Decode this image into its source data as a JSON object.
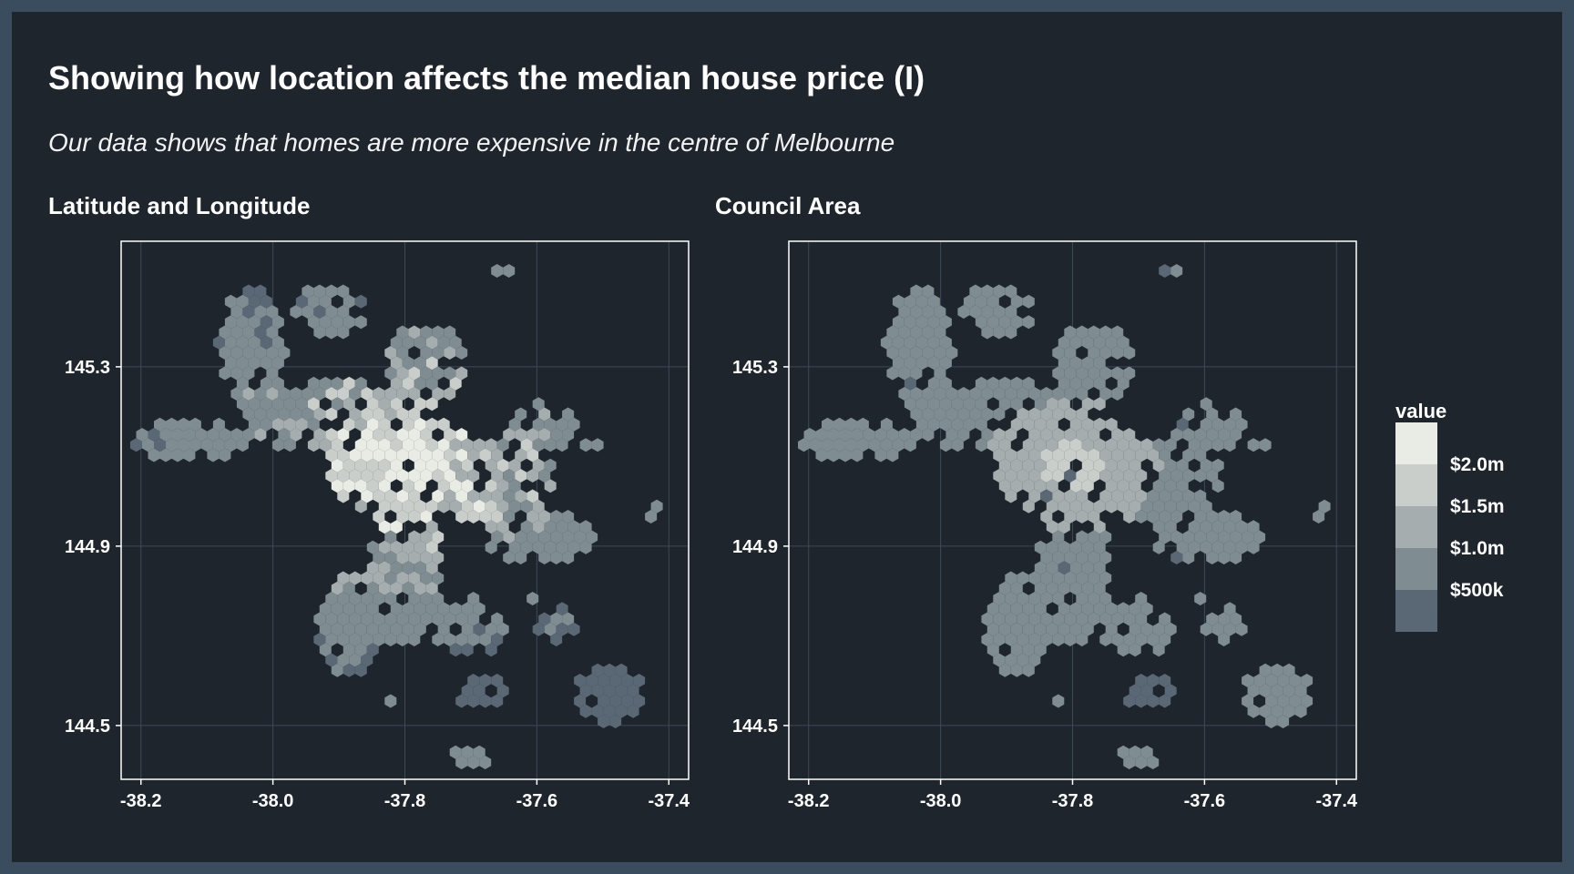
{
  "title": "Showing how location affects the median house price (I)",
  "subtitle": "Our data shows that homes are more expensive in the centre of Melbourne",
  "colors": {
    "background": "#1e252d",
    "outer_border": "#3a4d5e",
    "panel_border": "#ffffff",
    "grid": "#3d4a56",
    "text": "#ffffff"
  },
  "legend": {
    "title": "value",
    "bins": [
      {
        "label": "",
        "color": "#e9ece4"
      },
      {
        "label": "$2.0m",
        "color": "#c9cecb"
      },
      {
        "label": "$1.5m",
        "color": "#a5adae"
      },
      {
        "label": "$1.0m",
        "color": "#7f8c92"
      },
      {
        "label": "$500k",
        "color": "#596874"
      }
    ]
  },
  "chart_data": [
    {
      "type": "heatmap",
      "title": "Latitude and Longitude",
      "xlabel": "",
      "ylabel": "",
      "x_ticks": [
        "-38.2",
        "-38.0",
        "-37.8",
        "-37.6",
        "-37.4"
      ],
      "y_ticks": [
        "145.3",
        "144.9",
        "144.5"
      ],
      "xlim": [
        -38.23,
        -37.37
      ],
      "ylim": [
        144.38,
        145.58
      ],
      "grid": true,
      "mode": "latlon"
    },
    {
      "type": "heatmap",
      "title": "Council Area",
      "xlabel": "",
      "ylabel": "",
      "x_ticks": [
        "-38.2",
        "-38.0",
        "-37.8",
        "-37.6",
        "-37.4"
      ],
      "y_ticks": [
        "145.3",
        "144.9",
        "144.5"
      ],
      "xlim": [
        -38.23,
        -37.37
      ],
      "ylim": [
        144.38,
        145.58
      ],
      "grid": true,
      "mode": "council"
    }
  ]
}
